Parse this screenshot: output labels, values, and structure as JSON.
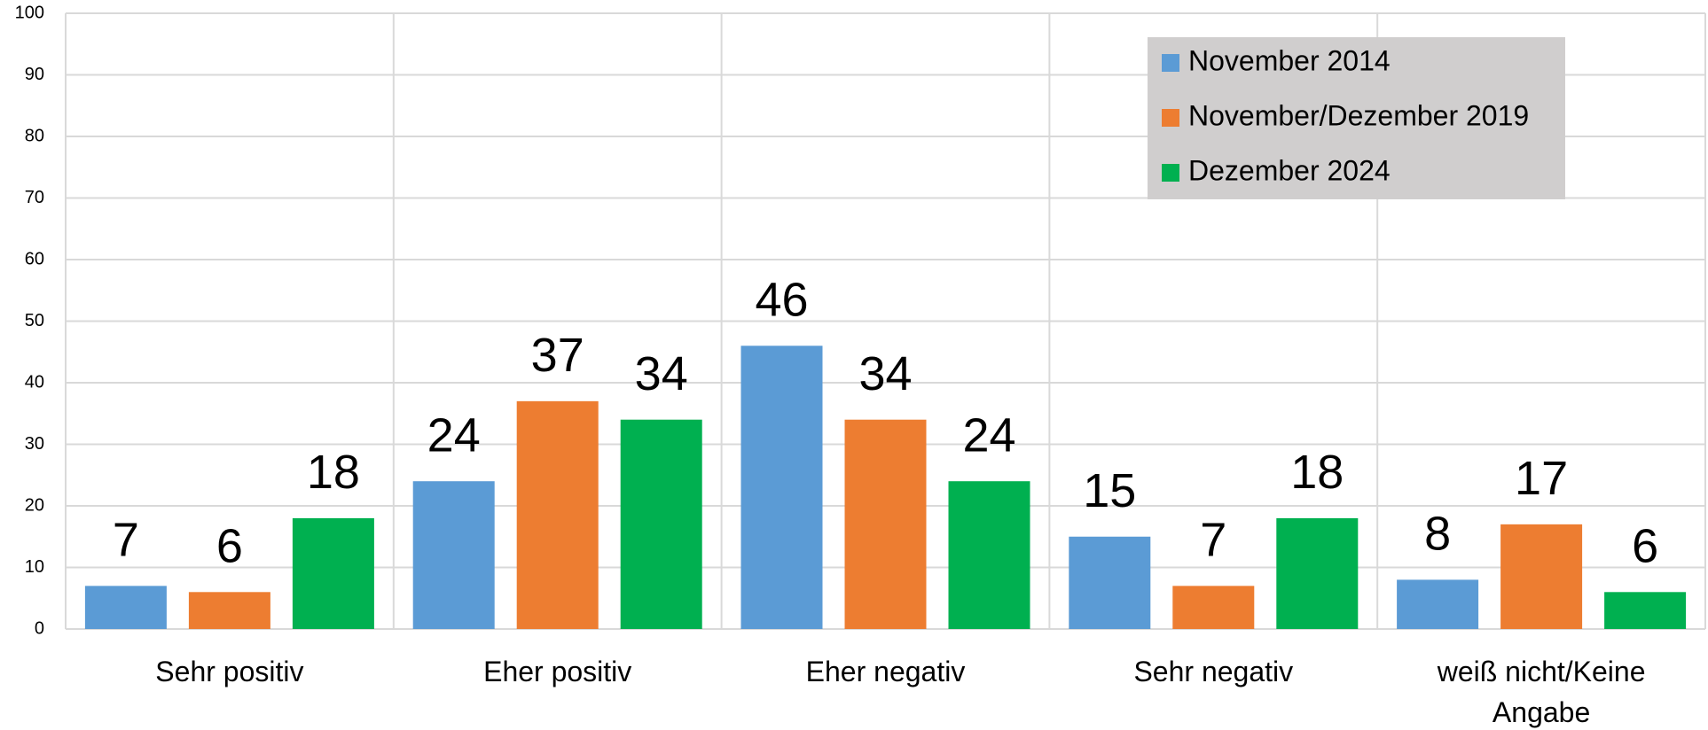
{
  "chart_data": {
    "type": "bar",
    "categories": [
      "Sehr positiv",
      "Eher positiv",
      "Eher negativ",
      "Sehr negativ",
      "weiß nicht/Keine Angabe"
    ],
    "series": [
      {
        "name": "November 2014",
        "color": "#5b9bd5",
        "values": [
          7,
          24,
          46,
          15,
          8
        ]
      },
      {
        "name": "November/Dezember 2019",
        "color": "#ed7d31",
        "values": [
          6,
          37,
          34,
          7,
          17
        ]
      },
      {
        "name": "Dezember 2024",
        "color": "#00b050",
        "values": [
          18,
          34,
          24,
          18,
          6
        ]
      }
    ],
    "ylim": [
      0,
      100
    ],
    "yticks": [
      0,
      10,
      20,
      30,
      40,
      50,
      60,
      70,
      80,
      90,
      100
    ],
    "grid": true,
    "legend": "upper right"
  }
}
